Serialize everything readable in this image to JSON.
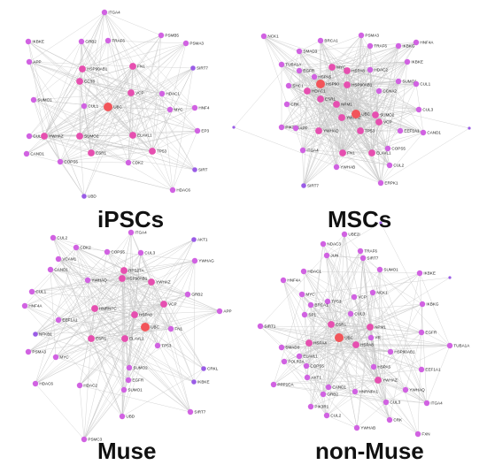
{
  "colors": {
    "edge": "#c8c8c8",
    "node_high": "#f2555a",
    "node_mid": "#e64fb0",
    "node_low": "#d162e2",
    "node_leaf": "#9a5ce6",
    "text": "#222222"
  },
  "panels": [
    {
      "id": "ipscs",
      "title": "iPSCs",
      "nodes": [
        {
          "label": "ITGA4",
          "level": "low"
        },
        {
          "label": "IKBKE",
          "level": "low"
        },
        {
          "label": "GRB2",
          "level": "low"
        },
        {
          "label": "TRAF6",
          "level": "low"
        },
        {
          "label": "PSMB5",
          "level": "low"
        },
        {
          "label": "PSMA3",
          "level": "low"
        },
        {
          "label": "APP",
          "level": "low"
        },
        {
          "label": "HSP90AB1",
          "level": "mid"
        },
        {
          "label": "SIRT7",
          "level": "leaf"
        },
        {
          "label": "CCT8",
          "level": "mid"
        },
        {
          "label": "FN1",
          "level": "mid"
        },
        {
          "label": "VCP",
          "level": "mid"
        },
        {
          "label": "HDAC1",
          "level": "low"
        },
        {
          "label": "SUMO1",
          "level": "low"
        },
        {
          "label": "CUL1",
          "level": "low"
        },
        {
          "label": "UBC",
          "level": "high"
        },
        {
          "label": "HNF4",
          "level": "low"
        },
        {
          "label": "MYC",
          "level": "low"
        },
        {
          "label": "CUL3",
          "level": "low"
        },
        {
          "label": "YWHAZ",
          "level": "mid"
        },
        {
          "label": "SUMO2",
          "level": "mid"
        },
        {
          "label": "ELAVL1",
          "level": "mid"
        },
        {
          "label": "EP3",
          "level": "low"
        },
        {
          "label": "CAND1",
          "level": "low"
        },
        {
          "label": "COPS5",
          "level": "low"
        },
        {
          "label": "ESR1",
          "level": "mid"
        },
        {
          "label": "CDK2",
          "level": "low"
        },
        {
          "label": "TP53",
          "level": "mid"
        },
        {
          "label": "SIRT",
          "level": "leaf"
        },
        {
          "label": "HDAC6",
          "level": "low"
        },
        {
          "label": "UBD",
          "level": "leaf"
        }
      ]
    },
    {
      "id": "mscs",
      "title": "MSCs",
      "nodes": [
        {
          "label": "NCK1",
          "level": "low"
        },
        {
          "label": "BRCA1",
          "level": "low"
        },
        {
          "label": "PSMA3",
          "level": "low"
        },
        {
          "label": "TRAF6",
          "level": "low"
        },
        {
          "label": "IKBKG",
          "level": "low"
        },
        {
          "label": "HNF4A",
          "level": "low"
        },
        {
          "label": "SMAD3",
          "level": "low"
        },
        {
          "label": "TUBA1A",
          "level": "low"
        },
        {
          "label": "IKBKE",
          "level": "low"
        },
        {
          "label": "EGFR",
          "level": "low"
        },
        {
          "label": "MYC",
          "level": "mid"
        },
        {
          "label": "HSPA8",
          "level": "mid"
        },
        {
          "label": "HDAC2",
          "level": "low"
        },
        {
          "label": "HSPA5",
          "level": "low"
        },
        {
          "label": "SHC1",
          "level": "low"
        },
        {
          "label": "HSP90",
          "level": "high"
        },
        {
          "label": "HSP90AB1",
          "level": "mid"
        },
        {
          "label": "SUMO1",
          "level": "low"
        },
        {
          "label": "CUL1",
          "level": "low"
        },
        {
          "label": "HDAC1",
          "level": "mid"
        },
        {
          "label": "CCNA2",
          "level": "low"
        },
        {
          "label": "ESR1",
          "level": "mid"
        },
        {
          "label": "NPM1",
          "level": "mid"
        },
        {
          "label": "CRK",
          "level": "low"
        },
        {
          "label": "YWHAZ",
          "level": "mid"
        },
        {
          "label": "UBC",
          "level": "high"
        },
        {
          "label": "SUMO2",
          "level": "mid"
        },
        {
          "label": "VCP",
          "level": "mid"
        },
        {
          "label": "CUL3",
          "level": "low"
        },
        {
          "label": "PIK3R1",
          "level": "low"
        },
        {
          "label": "APP",
          "level": "low"
        },
        {
          "label": "YWHAQ",
          "level": "mid"
        },
        {
          "label": "TP53",
          "level": "mid"
        },
        {
          "label": "EEF1A1",
          "level": "low"
        },
        {
          "label": "CAND1",
          "level": "low"
        },
        {
          "label": "ITGA4",
          "level": "low"
        },
        {
          "label": "FN1",
          "level": "mid"
        },
        {
          "label": "ELAVL1",
          "level": "mid"
        },
        {
          "label": "COPS5",
          "level": "low"
        },
        {
          "label": "YWHAB",
          "level": "low"
        },
        {
          "label": "CUL2",
          "level": "low"
        },
        {
          "label": "SIRT7",
          "level": "leaf"
        },
        {
          "label": "ERPK1",
          "level": "low"
        }
      ]
    },
    {
      "id": "muse",
      "title": "Muse",
      "nodes": [
        {
          "label": "CUL2",
          "level": "low"
        },
        {
          "label": "ITGA4",
          "level": "low"
        },
        {
          "label": "AKT1",
          "level": "leaf"
        },
        {
          "label": "CDK2",
          "level": "low"
        },
        {
          "label": "VCAM1",
          "level": "low"
        },
        {
          "label": "COPS5",
          "level": "low"
        },
        {
          "label": "CUL3",
          "level": "low"
        },
        {
          "label": "YWHAG",
          "level": "low"
        },
        {
          "label": "CAND1",
          "level": "low"
        },
        {
          "label": "YWHAQ",
          "level": "low"
        },
        {
          "label": "YWHAZ",
          "level": "mid"
        },
        {
          "label": "CUL1",
          "level": "low"
        },
        {
          "label": "RPS27A",
          "level": "mid"
        },
        {
          "label": "GRB2",
          "level": "low"
        },
        {
          "label": "HSP90AB1",
          "level": "mid"
        },
        {
          "label": "HNF4A",
          "level": "low"
        },
        {
          "label": "HNRNPC",
          "level": "mid"
        },
        {
          "label": "HSPA8",
          "level": "mid"
        },
        {
          "label": "VCP",
          "level": "mid"
        },
        {
          "label": "APP",
          "level": "low"
        },
        {
          "label": "EEF1A1",
          "level": "low"
        },
        {
          "label": "NFKB1",
          "level": "leaf"
        },
        {
          "label": "UBC",
          "level": "high"
        },
        {
          "label": "ESR1",
          "level": "mid"
        },
        {
          "label": "ELAVL1",
          "level": "mid"
        },
        {
          "label": "FN1",
          "level": "low"
        },
        {
          "label": "PSMA3",
          "level": "low"
        },
        {
          "label": "TP53",
          "level": "low"
        },
        {
          "label": "MYC",
          "level": "low"
        },
        {
          "label": "SUMO2",
          "level": "low"
        },
        {
          "label": "CRKL",
          "level": "leaf"
        },
        {
          "label": "EGFR",
          "level": "low"
        },
        {
          "label": "HDAC6",
          "level": "low"
        },
        {
          "label": "SUMO1",
          "level": "low"
        },
        {
          "label": "IKBKE",
          "level": "leaf"
        },
        {
          "label": "HDAC2",
          "level": "low"
        },
        {
          "label": "UBD",
          "level": "low"
        },
        {
          "label": "SIRT7",
          "level": "low"
        },
        {
          "label": "PSMC3",
          "level": "low"
        }
      ]
    },
    {
      "id": "nonmuse",
      "title": "non-Muse",
      "nodes": [
        {
          "label": "UBE2I",
          "level": "low"
        },
        {
          "label": "NDAC3",
          "level": "low"
        },
        {
          "label": "TRAF6",
          "level": "low"
        },
        {
          "label": "JUN",
          "level": "low"
        },
        {
          "label": "SIRT7",
          "level": "low"
        },
        {
          "label": "HDAC1",
          "level": "low"
        },
        {
          "label": "SUMO1",
          "level": "low"
        },
        {
          "label": "IKBKE",
          "level": "low"
        },
        {
          "label": "HNF4A",
          "level": "low"
        },
        {
          "label": "MYC",
          "level": "low"
        },
        {
          "label": "TP53",
          "level": "low"
        },
        {
          "label": "VCP",
          "level": "low"
        },
        {
          "label": "NCK1",
          "level": "low"
        },
        {
          "label": "BRCA1",
          "level": "low"
        },
        {
          "label": "IKBKG",
          "level": "low"
        },
        {
          "label": "SP1",
          "level": "low"
        },
        {
          "label": "CUL3",
          "level": "low"
        },
        {
          "label": "SIRT1",
          "level": "low"
        },
        {
          "label": "ESR1",
          "level": "mid"
        },
        {
          "label": "UBC",
          "level": "high"
        },
        {
          "label": "NPM1",
          "level": "mid"
        },
        {
          "label": "YR",
          "level": "low"
        },
        {
          "label": "EGFR",
          "level": "low"
        },
        {
          "label": "HSPA4",
          "level": "mid"
        },
        {
          "label": "HSPA8",
          "level": "mid"
        },
        {
          "label": "SMAD3",
          "level": "low"
        },
        {
          "label": "TUBA1A",
          "level": "low"
        },
        {
          "label": "ELAVL1",
          "level": "low"
        },
        {
          "label": "HSP90AB1",
          "level": "low"
        },
        {
          "label": "POLR2A",
          "level": "low"
        },
        {
          "label": "COPS5",
          "level": "low"
        },
        {
          "label": "HSPA5",
          "level": "low"
        },
        {
          "label": "EEF1A1",
          "level": "low"
        },
        {
          "label": "AKT1",
          "level": "low"
        },
        {
          "label": "YWHAZ",
          "level": "mid"
        },
        {
          "label": "PPP1CA",
          "level": "low"
        },
        {
          "label": "CAND1",
          "level": "low"
        },
        {
          "label": "HNRNPA1",
          "level": "low"
        },
        {
          "label": "YWHAQ",
          "level": "low"
        },
        {
          "label": "GRB2",
          "level": "low"
        },
        {
          "label": "CUL3",
          "level": "low"
        },
        {
          "label": "ITGA4",
          "level": "low"
        },
        {
          "label": "PIK3R1",
          "level": "low"
        },
        {
          "label": "CUL2",
          "level": "low"
        },
        {
          "label": "CRK",
          "level": "low"
        },
        {
          "label": "YWHAB",
          "level": "low"
        },
        {
          "label": "FXN",
          "level": "low"
        }
      ]
    }
  ]
}
